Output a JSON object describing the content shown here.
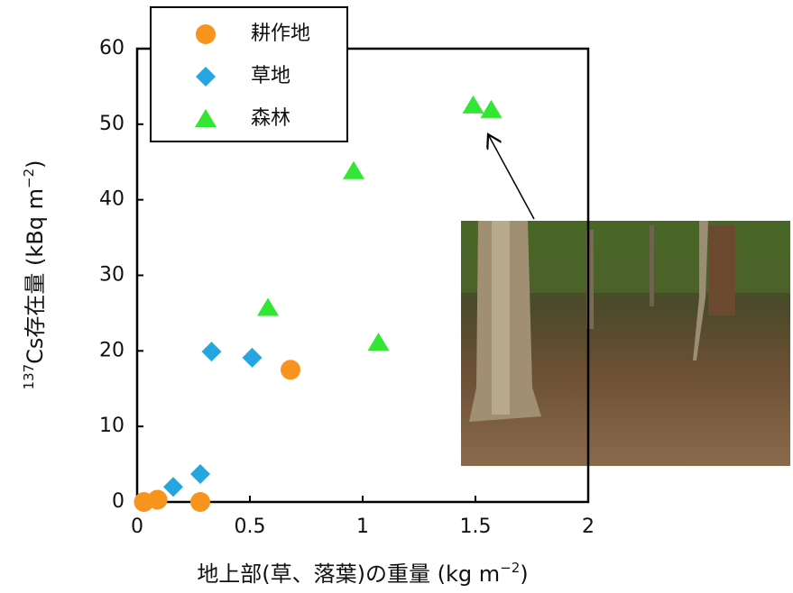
{
  "chart_data": {
    "type": "scatter",
    "x_label": {
      "main": "地上部(草、落葉)の重量 (kg m",
      "sup": "−2",
      "end": ")"
    },
    "y_label": {
      "pre": "137",
      "main": "Cs存在量 (kBq m",
      "sup": "−2",
      "end": ")"
    },
    "xlim": [
      0,
      2
    ],
    "xticks": [
      0,
      0.5,
      1,
      1.5,
      2
    ],
    "ylim": [
      0,
      60
    ],
    "yticks": [
      0,
      10,
      20,
      30,
      40,
      50,
      60
    ],
    "legend": "top-left",
    "series": [
      {
        "name": "耕作地",
        "color": "#f7941d",
        "marker": "circle",
        "x": [
          0.03,
          0.09,
          0.28,
          0.68
        ],
        "values": [
          0,
          0.3,
          0,
          17.5
        ]
      },
      {
        "name": "草地",
        "color": "#26a6e0",
        "marker": "diamond",
        "x": [
          0.16,
          0.28,
          0.33,
          0.51
        ],
        "values": [
          2,
          3.7,
          19.9,
          19.1
        ]
      },
      {
        "name": "森林",
        "color": "#33e633",
        "marker": "triangle",
        "x": [
          0.58,
          0.96,
          1.07,
          1.49,
          1.57
        ],
        "values": [
          25.7,
          43.8,
          21.1,
          52.5,
          51.9
        ]
      }
    ]
  }
}
